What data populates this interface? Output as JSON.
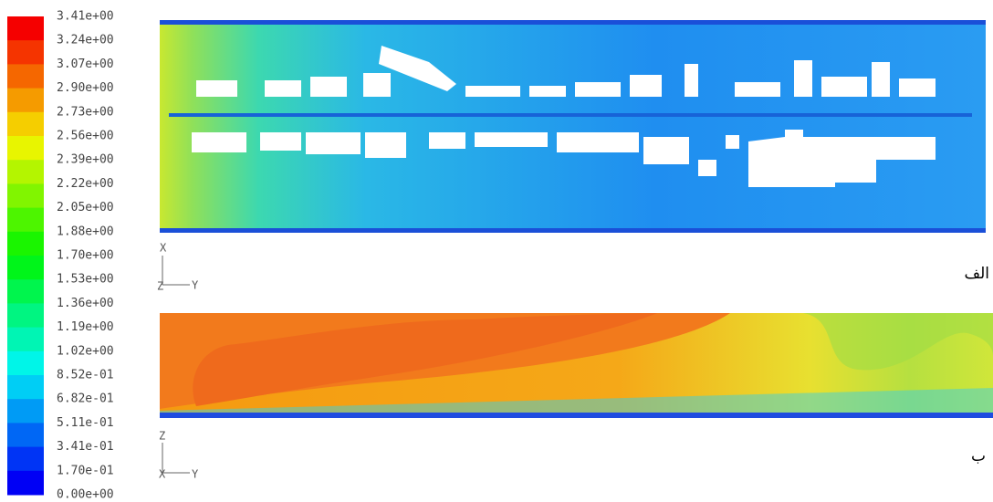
{
  "colorbar": {
    "labels": [
      "3.41e+00",
      "3.24e+00",
      "3.07e+00",
      "2.90e+00",
      "2.73e+00",
      "2.56e+00",
      "2.39e+00",
      "2.22e+00",
      "2.05e+00",
      "1.88e+00",
      "1.70e+00",
      "1.53e+00",
      "1.36e+00",
      "1.19e+00",
      "1.02e+00",
      "8.52e-01",
      "6.82e-01",
      "5.11e-01",
      "3.41e-01",
      "1.70e-01",
      "0.00e+00"
    ]
  },
  "panels": [
    {
      "label": "الف",
      "axes": {
        "vertical": "X",
        "origin": "Z",
        "horizontal": "Y"
      }
    },
    {
      "label": "ب",
      "axes": {
        "vertical": "Z",
        "origin": "X",
        "horizontal": "Y"
      }
    }
  ]
}
